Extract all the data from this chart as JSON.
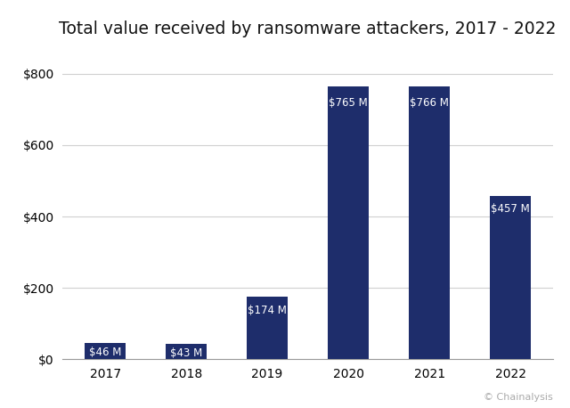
{
  "title": "Total value received by ransomware attackers, 2017 - 2022",
  "categories": [
    "2017",
    "2018",
    "2019",
    "2020",
    "2021",
    "2022"
  ],
  "values": [
    46,
    43,
    174,
    765,
    766,
    457
  ],
  "labels": [
    "$46 M",
    "$43 M",
    "$174 M",
    "$765 M",
    "$766 M",
    "$457 M"
  ],
  "bar_color": "#1e2d6b",
  "label_color": "#ffffff",
  "background_color": "#ffffff",
  "grid_color": "#d0d0d0",
  "title_fontsize": 13.5,
  "ylabel_ticks": [
    0,
    200,
    400,
    600,
    800
  ],
  "ylim": [
    0,
    870
  ],
  "tick_label_fontsize": 10,
  "watermark": "© Chainalysis",
  "watermark_color": "#aaaaaa",
  "watermark_fontsize": 8
}
